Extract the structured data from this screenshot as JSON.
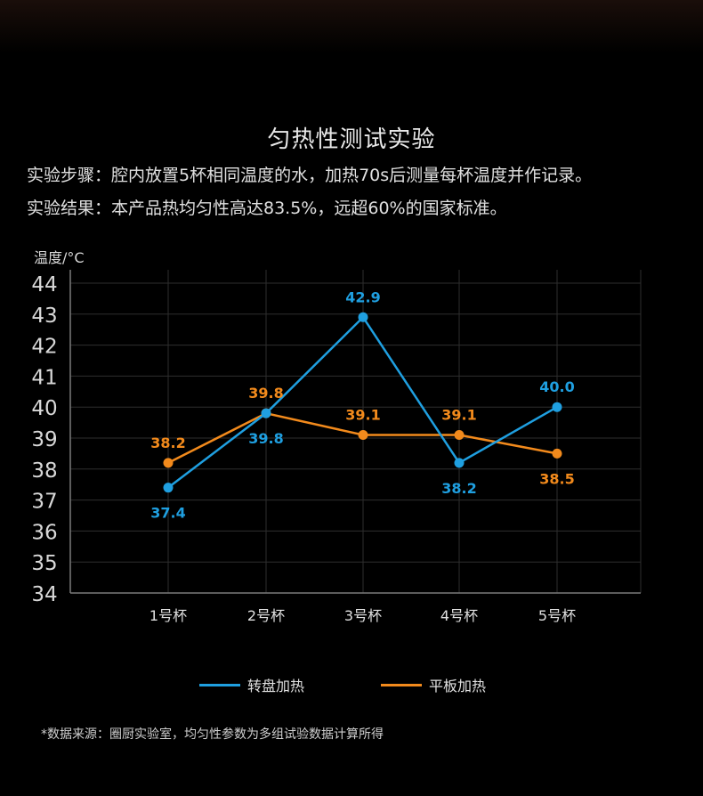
{
  "title": "匀热性测试实验",
  "description": {
    "line1": "实验步骤：腔内放置5杯相同温度的水，加热70s后测量每杯温度并作记录。",
    "line2": "实验结果：本产品热均匀性高达83.5%，远超60%的国家标准。"
  },
  "footnote": "*数据来源：圈厨实验室，均匀性参数为多组试验数据计算所得",
  "chart_data": {
    "type": "line",
    "ylabel": "温度/°C",
    "xlabel": "",
    "ylim": [
      34,
      44
    ],
    "yticks": [
      "34",
      "35",
      "36",
      "37",
      "38",
      "39",
      "40",
      "41",
      "42",
      "43",
      "44"
    ],
    "categories": [
      "1号杯",
      "2号杯",
      "3号杯",
      "4号杯",
      "5号杯"
    ],
    "grid": true,
    "legend_position": "bottom",
    "series": [
      {
        "name": "转盘加热",
        "color": "#1f9fe0",
        "values": [
          37.4,
          39.8,
          42.9,
          38.2,
          40.0
        ],
        "labels": [
          "37.4",
          "39.8",
          "42.9",
          "38.2",
          "40.0"
        ]
      },
      {
        "name": "平板加热",
        "color": "#f28a1c",
        "values": [
          38.2,
          39.8,
          39.1,
          39.1,
          38.5
        ],
        "labels": [
          "38.2",
          "39.8",
          "39.1",
          "39.1",
          "38.5"
        ]
      }
    ]
  }
}
